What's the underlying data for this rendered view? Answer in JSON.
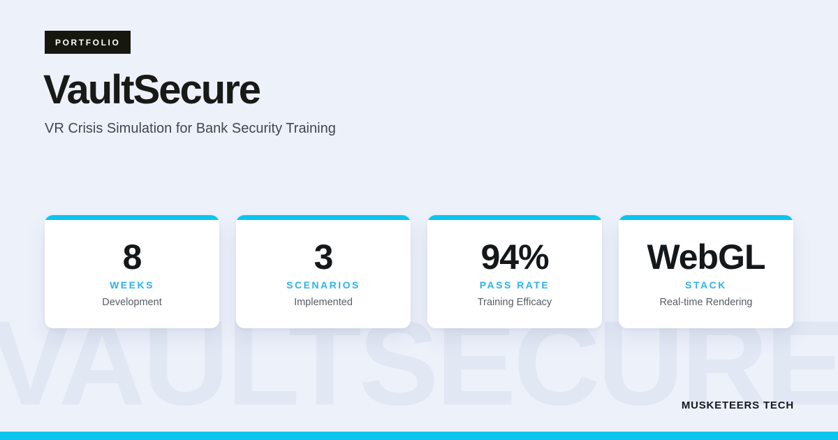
{
  "page": {
    "background": "#edf1fa",
    "accent": "#0bc5ee",
    "accent_text": "#2ab4ec",
    "badge_bg": "#16170f",
    "ink": "#171a16",
    "watermark_color": "#e2e7f4"
  },
  "badge": {
    "label": "PORTFOLIO"
  },
  "header": {
    "title": "VaultSecure",
    "subtitle": "VR Crisis Simulation for Bank Security Training"
  },
  "stats": [
    {
      "value": "8",
      "label": "WEEKS",
      "description": "Development"
    },
    {
      "value": "3",
      "label": "SCENARIOS",
      "description": "Implemented"
    },
    {
      "value": "94%",
      "label": "PASS RATE",
      "description": "Training Efficacy"
    },
    {
      "value": "WebGL",
      "label": "STACK",
      "description": "Real-time Rendering"
    }
  ],
  "watermark": {
    "text": "VAULTSECURE"
  },
  "footer": {
    "brand": "MUSKETEERS TECH"
  }
}
